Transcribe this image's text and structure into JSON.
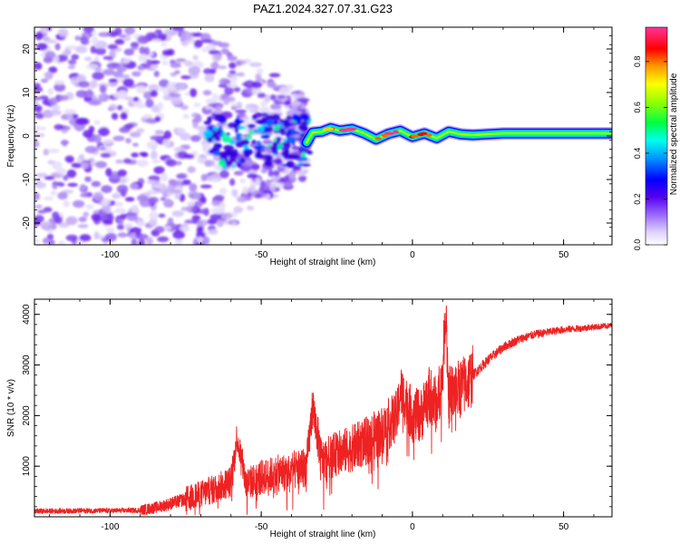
{
  "title": "PAZ1.2024.327.07.31.G23",
  "colors": {
    "snr_line": "#ee2222",
    "axis": "#000000",
    "spectrogram_palette": [
      "#ffffff",
      "#d9c7f7",
      "#8a4ff0",
      "#5500ee",
      "#0000ff",
      "#00ccff",
      "#00ff66",
      "#ccff00",
      "#ffcc00",
      "#ff2200",
      "#ff33aa"
    ]
  },
  "chart_data": [
    {
      "type": "heatmap",
      "panel": "spectrogram",
      "xlabel": "Height of straight line (km)",
      "ylabel": "Frequency (Hz)",
      "xlim": [
        -125,
        66
      ],
      "ylim": [
        -25,
        25
      ],
      "x_ticks": [
        -100,
        -50,
        0,
        50
      ],
      "x_tick_labels": [
        "-100",
        "-50",
        "0",
        "50"
      ],
      "y_ticks": [
        20,
        10,
        0,
        -10,
        -20
      ],
      "y_tick_labels": [
        "20",
        "10",
        "0",
        "-10",
        "-20"
      ],
      "colorbar": {
        "label": "Normalized spectral amplitude",
        "range": [
          0,
          0.95
        ],
        "ticks": [
          0,
          0.2,
          0.4,
          0.6,
          0.8
        ],
        "tick_labels": [
          "0.0",
          "0.2",
          "0.4",
          "0.6",
          "0.8"
        ],
        "colormap": "white-purple-blue-cyan-green-yellow-red-magenta"
      },
      "signal_ridge": {
        "description_values": "approximate center frequency (Hz) vs height (km) of the coherent signal",
        "x": [
          -35,
          -33,
          -30,
          -27,
          -24,
          -20,
          -16,
          -12,
          -8,
          -4,
          0,
          4,
          8,
          12,
          16,
          20,
          30,
          40,
          50,
          60,
          66
        ],
        "y": [
          -1.5,
          0.8,
          1.0,
          1.8,
          1.2,
          1.6,
          0.6,
          -0.8,
          0.5,
          1.2,
          -0.2,
          0.6,
          -0.5,
          1.0,
          0.4,
          0.2,
          0.6,
          0.6,
          0.6,
          0.6,
          0.6
        ]
      },
      "noise_region": {
        "x_range": [
          -125,
          -35
        ],
        "y_range": [
          -25,
          25
        ]
      }
    },
    {
      "type": "line",
      "panel": "snr",
      "xlabel": "Height of straight line (km)",
      "ylabel": "SNR (10 * v/v)",
      "xlim": [
        -125,
        66
      ],
      "ylim": [
        0,
        4300
      ],
      "x_ticks": [
        -100,
        -50,
        0,
        50
      ],
      "x_tick_labels": [
        "-100",
        "-50",
        "0",
        "50"
      ],
      "y_ticks": [
        1000,
        2000,
        3000,
        4000
      ],
      "y_tick_labels": [
        "1000",
        "2000",
        "3000",
        "4000"
      ],
      "series": [
        {
          "x": [
            -125,
            -110,
            -100,
            -90,
            -85,
            -80,
            -75,
            -70,
            -65,
            -60,
            -58,
            -55,
            -50,
            -45,
            -40,
            -35,
            -33,
            -30,
            -25,
            -20,
            -15,
            -10,
            -5,
            -4,
            0,
            3,
            5,
            8,
            10,
            11,
            12,
            15,
            18,
            20,
            25,
            30,
            35,
            40,
            45,
            50,
            55,
            60,
            66
          ],
          "y": [
            110,
            120,
            120,
            130,
            180,
            260,
            350,
            450,
            560,
            700,
            1600,
            650,
            780,
            850,
            900,
            1000,
            2200,
            1100,
            1250,
            1350,
            1500,
            1700,
            2000,
            2500,
            2000,
            2000,
            2450,
            2200,
            2800,
            4200,
            2400,
            2500,
            2650,
            2800,
            3100,
            3350,
            3500,
            3600,
            3650,
            3700,
            3720,
            3750,
            3780
          ]
        }
      ]
    }
  ]
}
